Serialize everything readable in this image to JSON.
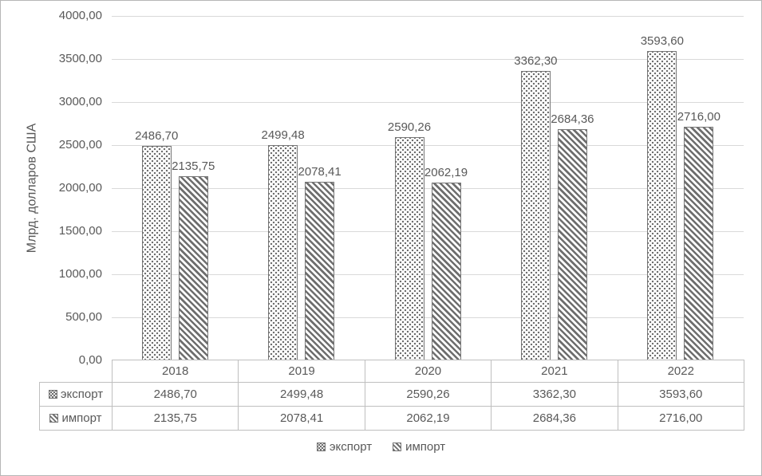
{
  "chart_data": {
    "type": "bar",
    "title": "",
    "ylabel": "Млрд. долларов США",
    "ylim": [
      0,
      4000
    ],
    "ytick_step": 500,
    "yticks": [
      {
        "value": 4000,
        "label": "4000,00"
      },
      {
        "value": 3500,
        "label": "3500,00"
      },
      {
        "value": 3000,
        "label": "3000,00"
      },
      {
        "value": 2500,
        "label": "2500,00"
      },
      {
        "value": 2000,
        "label": "2000,00"
      },
      {
        "value": 1500,
        "label": "1500,00"
      },
      {
        "value": 1000,
        "label": "1000,00"
      },
      {
        "value": 500,
        "label": "500,00"
      },
      {
        "value": 0,
        "label": "0,00"
      }
    ],
    "categories": [
      "2018",
      "2019",
      "2020",
      "2021",
      "2022"
    ],
    "series": [
      {
        "key": "export",
        "name": "экспорт",
        "pattern": "dotted",
        "values": [
          2486.7,
          2499.48,
          2590.26,
          3362.3,
          3593.6
        ],
        "labels": [
          "2486,70",
          "2499,48",
          "2590,26",
          "3362,30",
          "3593,60"
        ]
      },
      {
        "key": "import",
        "name": "импорт",
        "pattern": "hatch",
        "values": [
          2135.75,
          2078.41,
          2062.19,
          2684.36,
          2716.0
        ],
        "labels": [
          "2135,75",
          "2078,41",
          "2062,19",
          "2684,36",
          "2716,00"
        ]
      }
    ],
    "grid": true,
    "legend_position": "bottom",
    "show_data_table": true
  },
  "colors": {
    "background": "#ffffff",
    "frame_border": "#b6b6b6",
    "text": "#595959",
    "gridline": "#d9d9d9",
    "bar_border": "#767676",
    "pattern_fill": "#6e6e6e",
    "table_border": "#bfbfbf"
  }
}
